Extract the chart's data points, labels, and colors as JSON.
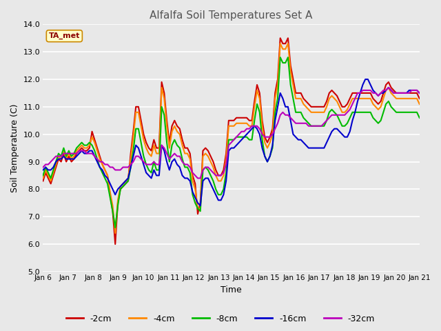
{
  "title": "Alfalfa Soil Temperatures Set A",
  "xlabel": "Time",
  "ylabel": "Soil Temperature (C)",
  "ylim": [
    5.0,
    14.0
  ],
  "yticks": [
    5.0,
    6.0,
    7.0,
    8.0,
    9.0,
    10.0,
    11.0,
    12.0,
    13.0,
    14.0
  ],
  "xtick_labels": [
    "Jan 6",
    "Jan 7",
    "Jan 8",
    "Jan 9",
    "Jan 10",
    "Jan 11",
    "Jan 12",
    "Jan 13",
    "Jan 14",
    "Jan 15",
    "Jan 16",
    "Jan 17",
    "Jan 18",
    "Jan 19",
    "Jan 20",
    "Jan 21"
  ],
  "background_color": "#e8e8e8",
  "grid_color": "#ffffff",
  "legend_entries": [
    "-2cm",
    "-4cm",
    "-8cm",
    "-16cm",
    "-32cm"
  ],
  "line_colors": [
    "#cc0000",
    "#ff8800",
    "#00bb00",
    "#0000cc",
    "#bb00bb"
  ],
  "line_widths": [
    1.5,
    1.5,
    1.5,
    1.5,
    1.5
  ],
  "ta_met_annotation": "TA_met",
  "series": {
    "neg2cm": [
      8.3,
      8.6,
      8.4,
      8.2,
      8.5,
      8.8,
      9.1,
      9.0,
      9.3,
      9.0,
      9.2,
      9.0,
      9.1,
      9.3,
      9.4,
      9.5,
      9.4,
      9.4,
      9.5,
      10.1,
      9.8,
      9.5,
      9.2,
      8.9,
      8.7,
      8.5,
      7.8,
      7.2,
      6.0,
      7.5,
      8.0,
      8.1,
      8.2,
      8.3,
      9.3,
      10.1,
      11.0,
      11.0,
      10.5,
      10.0,
      9.7,
      9.5,
      9.4,
      9.8,
      9.5,
      9.5,
      11.9,
      11.5,
      10.5,
      9.7,
      10.3,
      10.5,
      10.3,
      10.2,
      9.8,
      9.5,
      9.5,
      9.3,
      8.5,
      8.2,
      7.1,
      7.5,
      9.4,
      9.5,
      9.4,
      9.2,
      9.0,
      8.7,
      8.5,
      8.5,
      8.7,
      9.3,
      10.5,
      10.5,
      10.5,
      10.6,
      10.6,
      10.6,
      10.6,
      10.6,
      10.5,
      10.5,
      11.2,
      11.8,
      11.5,
      10.5,
      9.9,
      9.7,
      9.9,
      10.2,
      11.5,
      12.0,
      13.5,
      13.3,
      13.3,
      13.5,
      12.5,
      12.0,
      11.5,
      11.5,
      11.5,
      11.3,
      11.2,
      11.1,
      11.0,
      11.0,
      11.0,
      11.0,
      11.0,
      11.0,
      11.2,
      11.5,
      11.6,
      11.5,
      11.4,
      11.2,
      11.0,
      11.0,
      11.1,
      11.3,
      11.5,
      11.5,
      11.5,
      11.5,
      11.5,
      11.5,
      11.5,
      11.5,
      11.3,
      11.2,
      11.1,
      11.2,
      11.5,
      11.8,
      11.9,
      11.7,
      11.6,
      11.5,
      11.5,
      11.5,
      11.5,
      11.5,
      11.5,
      11.5,
      11.5,
      11.5,
      11.3
    ],
    "neg4cm": [
      8.4,
      8.7,
      8.5,
      8.3,
      8.6,
      8.9,
      9.2,
      9.1,
      9.4,
      9.1,
      9.3,
      9.1,
      9.2,
      9.4,
      9.5,
      9.6,
      9.5,
      9.5,
      9.6,
      9.9,
      9.7,
      9.4,
      9.1,
      8.9,
      8.7,
      8.5,
      7.9,
      7.4,
      6.4,
      7.6,
      8.1,
      8.2,
      8.3,
      8.4,
      9.1,
      9.9,
      10.8,
      10.8,
      10.3,
      9.8,
      9.5,
      9.3,
      9.2,
      9.6,
      9.3,
      9.3,
      11.7,
      11.3,
      10.3,
      9.5,
      10.1,
      10.3,
      10.1,
      10.0,
      9.6,
      9.3,
      9.3,
      9.1,
      8.3,
      8.0,
      7.3,
      7.3,
      9.2,
      9.3,
      9.2,
      9.0,
      8.8,
      8.5,
      8.3,
      8.3,
      8.5,
      9.1,
      10.3,
      10.3,
      10.3,
      10.4,
      10.4,
      10.4,
      10.4,
      10.4,
      10.3,
      10.3,
      11.0,
      11.6,
      11.3,
      10.3,
      9.7,
      9.5,
      9.7,
      10.0,
      11.3,
      11.8,
      13.3,
      13.1,
      13.1,
      13.3,
      12.3,
      11.8,
      11.3,
      11.3,
      11.3,
      11.1,
      11.0,
      10.9,
      10.8,
      10.8,
      10.8,
      10.8,
      10.8,
      10.8,
      11.0,
      11.3,
      11.4,
      11.3,
      11.2,
      11.0,
      10.8,
      10.8,
      10.9,
      11.1,
      11.3,
      11.3,
      11.3,
      11.3,
      11.3,
      11.3,
      11.3,
      11.3,
      11.1,
      11.0,
      10.9,
      11.0,
      11.3,
      11.6,
      11.7,
      11.5,
      11.4,
      11.3,
      11.3,
      11.3,
      11.3,
      11.3,
      11.3,
      11.3,
      11.3,
      11.3,
      11.1
    ],
    "neg8cm": [
      8.5,
      8.8,
      8.6,
      8.4,
      8.7,
      9.0,
      9.3,
      9.2,
      9.5,
      9.2,
      9.4,
      9.2,
      9.3,
      9.5,
      9.6,
      9.7,
      9.6,
      9.6,
      9.7,
      9.6,
      9.4,
      9.1,
      8.8,
      8.6,
      8.4,
      8.2,
      7.7,
      7.2,
      6.6,
      7.4,
      8.0,
      8.1,
      8.2,
      8.3,
      8.8,
      9.4,
      10.2,
      10.2,
      9.7,
      9.2,
      8.9,
      8.7,
      8.6,
      9.0,
      8.7,
      8.7,
      11.0,
      10.7,
      9.7,
      9.0,
      9.6,
      9.8,
      9.6,
      9.5,
      9.1,
      8.8,
      8.8,
      8.6,
      7.8,
      7.5,
      7.3,
      7.2,
      8.7,
      8.8,
      8.7,
      8.5,
      8.3,
      8.0,
      7.8,
      7.8,
      8.0,
      8.6,
      9.8,
      9.8,
      9.8,
      9.9,
      9.9,
      9.9,
      9.9,
      9.9,
      9.8,
      9.8,
      10.5,
      11.1,
      10.8,
      9.8,
      9.2,
      9.0,
      9.2,
      9.5,
      10.8,
      11.3,
      12.8,
      12.6,
      12.6,
      12.8,
      11.8,
      11.3,
      10.8,
      10.8,
      10.8,
      10.6,
      10.5,
      10.4,
      10.3,
      10.3,
      10.3,
      10.3,
      10.3,
      10.3,
      10.5,
      10.8,
      10.9,
      10.8,
      10.7,
      10.5,
      10.3,
      10.3,
      10.4,
      10.6,
      10.8,
      10.8,
      10.8,
      10.8,
      10.8,
      10.8,
      10.8,
      10.8,
      10.6,
      10.5,
      10.4,
      10.5,
      10.8,
      11.1,
      11.2,
      11.0,
      10.9,
      10.8,
      10.8,
      10.8,
      10.8,
      10.8,
      10.8,
      10.8,
      10.8,
      10.8,
      10.6
    ],
    "neg16cm": [
      8.7,
      8.8,
      8.7,
      8.7,
      8.8,
      9.0,
      9.1,
      9.1,
      9.2,
      9.1,
      9.1,
      9.1,
      9.1,
      9.2,
      9.3,
      9.4,
      9.3,
      9.3,
      9.4,
      9.4,
      9.2,
      9.0,
      8.8,
      8.7,
      8.5,
      8.4,
      8.2,
      8.0,
      7.8,
      8.0,
      8.1,
      8.2,
      8.3,
      8.4,
      8.8,
      9.2,
      9.6,
      9.5,
      9.2,
      8.9,
      8.6,
      8.5,
      8.4,
      8.7,
      8.5,
      8.5,
      9.6,
      9.4,
      9.0,
      8.7,
      9.0,
      9.1,
      8.9,
      8.8,
      8.5,
      8.4,
      8.4,
      8.3,
      7.9,
      7.7,
      7.5,
      7.4,
      8.3,
      8.4,
      8.4,
      8.2,
      8.0,
      7.8,
      7.6,
      7.6,
      7.8,
      8.3,
      9.4,
      9.5,
      9.5,
      9.6,
      9.7,
      9.8,
      9.9,
      10.0,
      10.1,
      10.2,
      10.3,
      10.2,
      10.0,
      9.5,
      9.2,
      9.0,
      9.2,
      9.6,
      10.5,
      11.0,
      11.5,
      11.3,
      11.0,
      11.0,
      10.5,
      10.0,
      9.9,
      9.8,
      9.8,
      9.7,
      9.6,
      9.5,
      9.5,
      9.5,
      9.5,
      9.5,
      9.5,
      9.5,
      9.7,
      9.9,
      10.1,
      10.2,
      10.2,
      10.1,
      10.0,
      9.9,
      9.9,
      10.1,
      10.5,
      10.8,
      11.2,
      11.5,
      11.8,
      12.0,
      12.0,
      11.8,
      11.6,
      11.5,
      11.4,
      11.5,
      11.5,
      11.6,
      11.7,
      11.6,
      11.5,
      11.5,
      11.5,
      11.5,
      11.5,
      11.5,
      11.6,
      11.6,
      11.6,
      11.6,
      11.5
    ],
    "neg32cm": [
      8.8,
      8.9,
      8.9,
      9.0,
      9.1,
      9.2,
      9.2,
      9.2,
      9.3,
      9.3,
      9.3,
      9.3,
      9.3,
      9.3,
      9.4,
      9.4,
      9.4,
      9.3,
      9.3,
      9.3,
      9.2,
      9.1,
      9.0,
      9.0,
      8.9,
      8.9,
      8.8,
      8.8,
      8.7,
      8.7,
      8.7,
      8.8,
      8.8,
      8.8,
      8.9,
      9.0,
      9.2,
      9.2,
      9.1,
      9.0,
      8.9,
      8.9,
      8.9,
      9.0,
      8.9,
      8.9,
      9.6,
      9.5,
      9.3,
      9.1,
      9.2,
      9.3,
      9.2,
      9.2,
      9.0,
      8.9,
      8.9,
      8.8,
      8.6,
      8.5,
      8.4,
      8.4,
      8.7,
      8.8,
      8.8,
      8.7,
      8.6,
      8.5,
      8.5,
      8.5,
      8.6,
      8.9,
      9.6,
      9.7,
      9.8,
      9.9,
      10.0,
      10.1,
      10.1,
      10.2,
      10.2,
      10.3,
      10.3,
      10.3,
      10.2,
      10.0,
      9.9,
      9.9,
      9.9,
      10.0,
      10.2,
      10.4,
      10.7,
      10.8,
      10.7,
      10.7,
      10.6,
      10.5,
      10.4,
      10.4,
      10.4,
      10.4,
      10.4,
      10.3,
      10.3,
      10.3,
      10.3,
      10.3,
      10.3,
      10.4,
      10.5,
      10.6,
      10.7,
      10.7,
      10.7,
      10.7,
      10.7,
      10.7,
      10.8,
      10.9,
      11.1,
      11.3,
      11.5,
      11.5,
      11.6,
      11.6,
      11.6,
      11.6,
      11.5,
      11.5,
      11.4,
      11.5,
      11.6,
      11.6,
      11.7,
      11.6,
      11.5,
      11.5,
      11.5,
      11.5,
      11.5,
      11.5,
      11.5,
      11.6,
      11.6,
      11.6,
      11.5
    ]
  }
}
